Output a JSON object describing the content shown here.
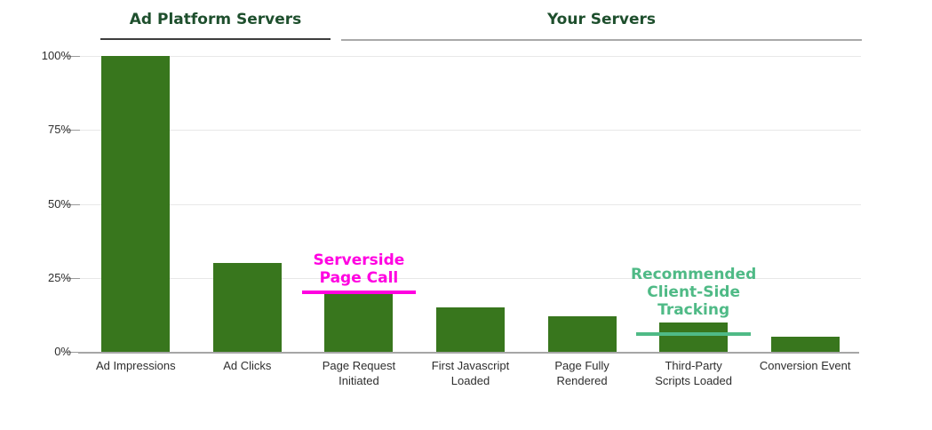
{
  "chart_data": {
    "type": "bar",
    "title": "",
    "xlabel": "",
    "ylabel": "",
    "unit": "%",
    "categories": [
      "Ad Impressions",
      "Ad Clicks",
      "Page Request Initiated",
      "First Javascript Loaded",
      "Page Fully Rendered",
      "Third-Party Scripts Loaded",
      "Conversion Event"
    ],
    "category_lines": [
      [
        "Ad Impressions"
      ],
      [
        "Ad Clicks"
      ],
      [
        "Page Request",
        "Initiated"
      ],
      [
        "First Javascript",
        "Loaded"
      ],
      [
        "Page Fully",
        "Rendered"
      ],
      [
        "Third-Party",
        "Scripts Loaded"
      ],
      [
        "Conversion Event"
      ]
    ],
    "values": [
      100,
      30,
      20,
      15,
      12,
      10,
      5
    ],
    "ylim": [
      0,
      100
    ],
    "ytick_values": [
      0,
      25,
      50,
      75,
      100
    ],
    "ytick_labels": [
      "0%",
      "25%",
      "50%",
      "75%",
      "100%"
    ],
    "grid": true,
    "legend": "none",
    "bar_color": "#38761d",
    "axis_text_color": "#2e2e2e",
    "groups": [
      {
        "label": "Ad Platform Servers",
        "start_category": "Ad Impressions",
        "end_category": "Ad Clicks",
        "text_color": "#1e4f2d",
        "underline_color": "#3d3d3d"
      },
      {
        "label": "Your Servers",
        "start_category": "Page Request Initiated",
        "end_category": "Conversion Event",
        "text_color": "#1e4f2d",
        "underline_color": "#a9a9a9"
      }
    ],
    "annotations": [
      {
        "label": "Serverside Page Call",
        "lines": [
          "Serverside",
          "Page Call"
        ],
        "color": "#ff00e1",
        "marker_value": 20,
        "target_category": "Page Request Initiated"
      },
      {
        "label": "Recommended Client-Side Tracking",
        "lines": [
          "Recommended",
          "Client-Side",
          "Tracking"
        ],
        "color": "#4fba86",
        "marker_value": 6,
        "target_category": "Third-Party Scripts Loaded"
      }
    ]
  }
}
